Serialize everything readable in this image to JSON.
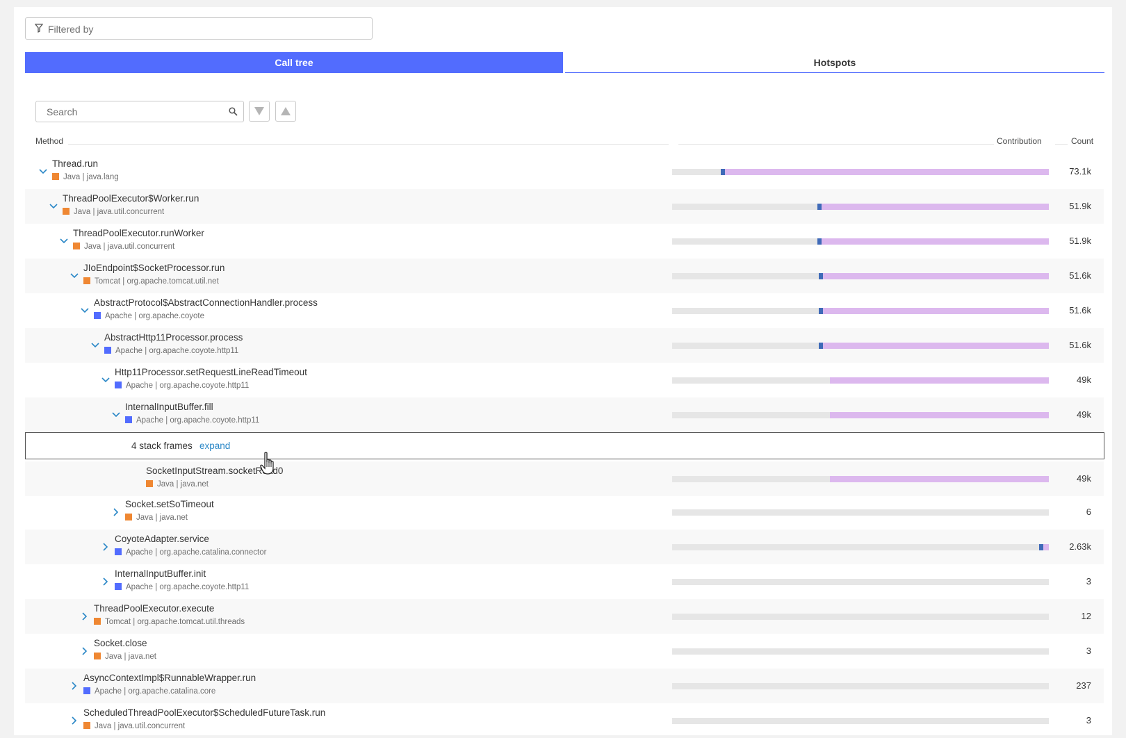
{
  "filter": {
    "placeholder": "Filtered by",
    "icon": "filter-icon"
  },
  "tabs": [
    {
      "label": "Call tree",
      "active": true
    },
    {
      "label": "Hotspots",
      "active": false
    }
  ],
  "search": {
    "placeholder": "Search",
    "icon": "search-icon"
  },
  "nav": {
    "down_icon": "triangle-down-icon",
    "up_icon": "triangle-up-icon"
  },
  "columns": {
    "method": "Method",
    "contribution": "Contribution",
    "count": "Count"
  },
  "colors": {
    "accent": "#526cfe",
    "contribution_fill": "#dcb8ee",
    "marker": "#3f6ab8",
    "java": "#ef8732",
    "apache": "#526cfe"
  },
  "rows": [
    {
      "method": "Thread.run",
      "tech": "Java | java.lang",
      "tech_type": "java",
      "depth": 0,
      "expanded": true,
      "contribution_start": 0.13,
      "has_marker": true,
      "count": "73.1k"
    },
    {
      "method": "ThreadPoolExecutor$Worker.run",
      "tech": "Java | java.util.concurrent",
      "tech_type": "java",
      "depth": 1,
      "expanded": true,
      "contribution_start": 0.385,
      "has_marker": true,
      "count": "51.9k"
    },
    {
      "method": "ThreadPoolExecutor.runWorker",
      "tech": "Java | java.util.concurrent",
      "tech_type": "java",
      "depth": 2,
      "expanded": true,
      "contribution_start": 0.386,
      "has_marker": true,
      "count": "51.9k"
    },
    {
      "method": "JIoEndpoint$SocketProcessor.run",
      "tech": "Tomcat | org.apache.tomcat.util.net",
      "tech_type": "java",
      "depth": 3,
      "expanded": true,
      "contribution_start": 0.39,
      "has_marker": true,
      "count": "51.6k"
    },
    {
      "method": "AbstractProtocol$AbstractConnectionHandler.process",
      "tech": "Apache | org.apache.coyote",
      "tech_type": "apache",
      "depth": 4,
      "expanded": true,
      "contribution_start": 0.39,
      "has_marker": true,
      "count": "51.6k"
    },
    {
      "method": "AbstractHttp11Processor.process",
      "tech": "Apache | org.apache.coyote.http11",
      "tech_type": "apache",
      "depth": 5,
      "expanded": true,
      "contribution_start": 0.39,
      "has_marker": true,
      "count": "51.6k"
    },
    {
      "method": "Http11Processor.setRequestLineReadTimeout",
      "tech": "Apache | org.apache.coyote.http11",
      "tech_type": "apache",
      "depth": 6,
      "expanded": true,
      "contribution_start": 0.418,
      "has_marker": false,
      "count": "49k"
    },
    {
      "method": "InternalInputBuffer.fill",
      "tech": "Apache | org.apache.coyote.http11",
      "tech_type": "apache",
      "depth": 7,
      "expanded": true,
      "contribution_start": 0.418,
      "has_marker": false,
      "count": "49k"
    },
    {
      "method": "SocketInputStream.socketRead0",
      "tech": "Java | java.net",
      "tech_type": "java",
      "depth": 9,
      "expanded": null,
      "contribution_start": 0.418,
      "has_marker": false,
      "count": "49k"
    },
    {
      "method": "Socket.setSoTimeout",
      "tech": "Java | java.net",
      "tech_type": "java",
      "depth": 7,
      "expanded": false,
      "contribution_start": null,
      "has_marker": false,
      "count": "6"
    },
    {
      "method": "CoyoteAdapter.service",
      "tech": "Apache | org.apache.catalina.connector",
      "tech_type": "apache",
      "depth": 6,
      "expanded": false,
      "contribution_start": 0.975,
      "has_marker": true,
      "count": "2.63k"
    },
    {
      "method": "InternalInputBuffer.init",
      "tech": "Apache | org.apache.coyote.http11",
      "tech_type": "apache",
      "depth": 6,
      "expanded": false,
      "contribution_start": null,
      "has_marker": false,
      "count": "3"
    },
    {
      "method": "ThreadPoolExecutor.execute",
      "tech": "Tomcat | org.apache.tomcat.util.threads",
      "tech_type": "java",
      "depth": 4,
      "expanded": false,
      "contribution_start": null,
      "has_marker": false,
      "count": "12"
    },
    {
      "method": "Socket.close",
      "tech": "Java | java.net",
      "tech_type": "java",
      "depth": 4,
      "expanded": false,
      "contribution_start": null,
      "has_marker": false,
      "count": "3"
    },
    {
      "method": "AsyncContextImpl$RunnableWrapper.run",
      "tech": "Apache | org.apache.catalina.core",
      "tech_type": "apache",
      "depth": 3,
      "expanded": false,
      "contribution_start": null,
      "has_marker": false,
      "count": "237"
    },
    {
      "method": "ScheduledThreadPoolExecutor$ScheduledFutureTask.run",
      "tech": "Java | java.util.concurrent",
      "tech_type": "java",
      "depth": 3,
      "expanded": false,
      "contribution_start": null,
      "has_marker": false,
      "count": "3"
    }
  ],
  "stack_frames": {
    "label": "4 stack frames",
    "action": "expand"
  }
}
